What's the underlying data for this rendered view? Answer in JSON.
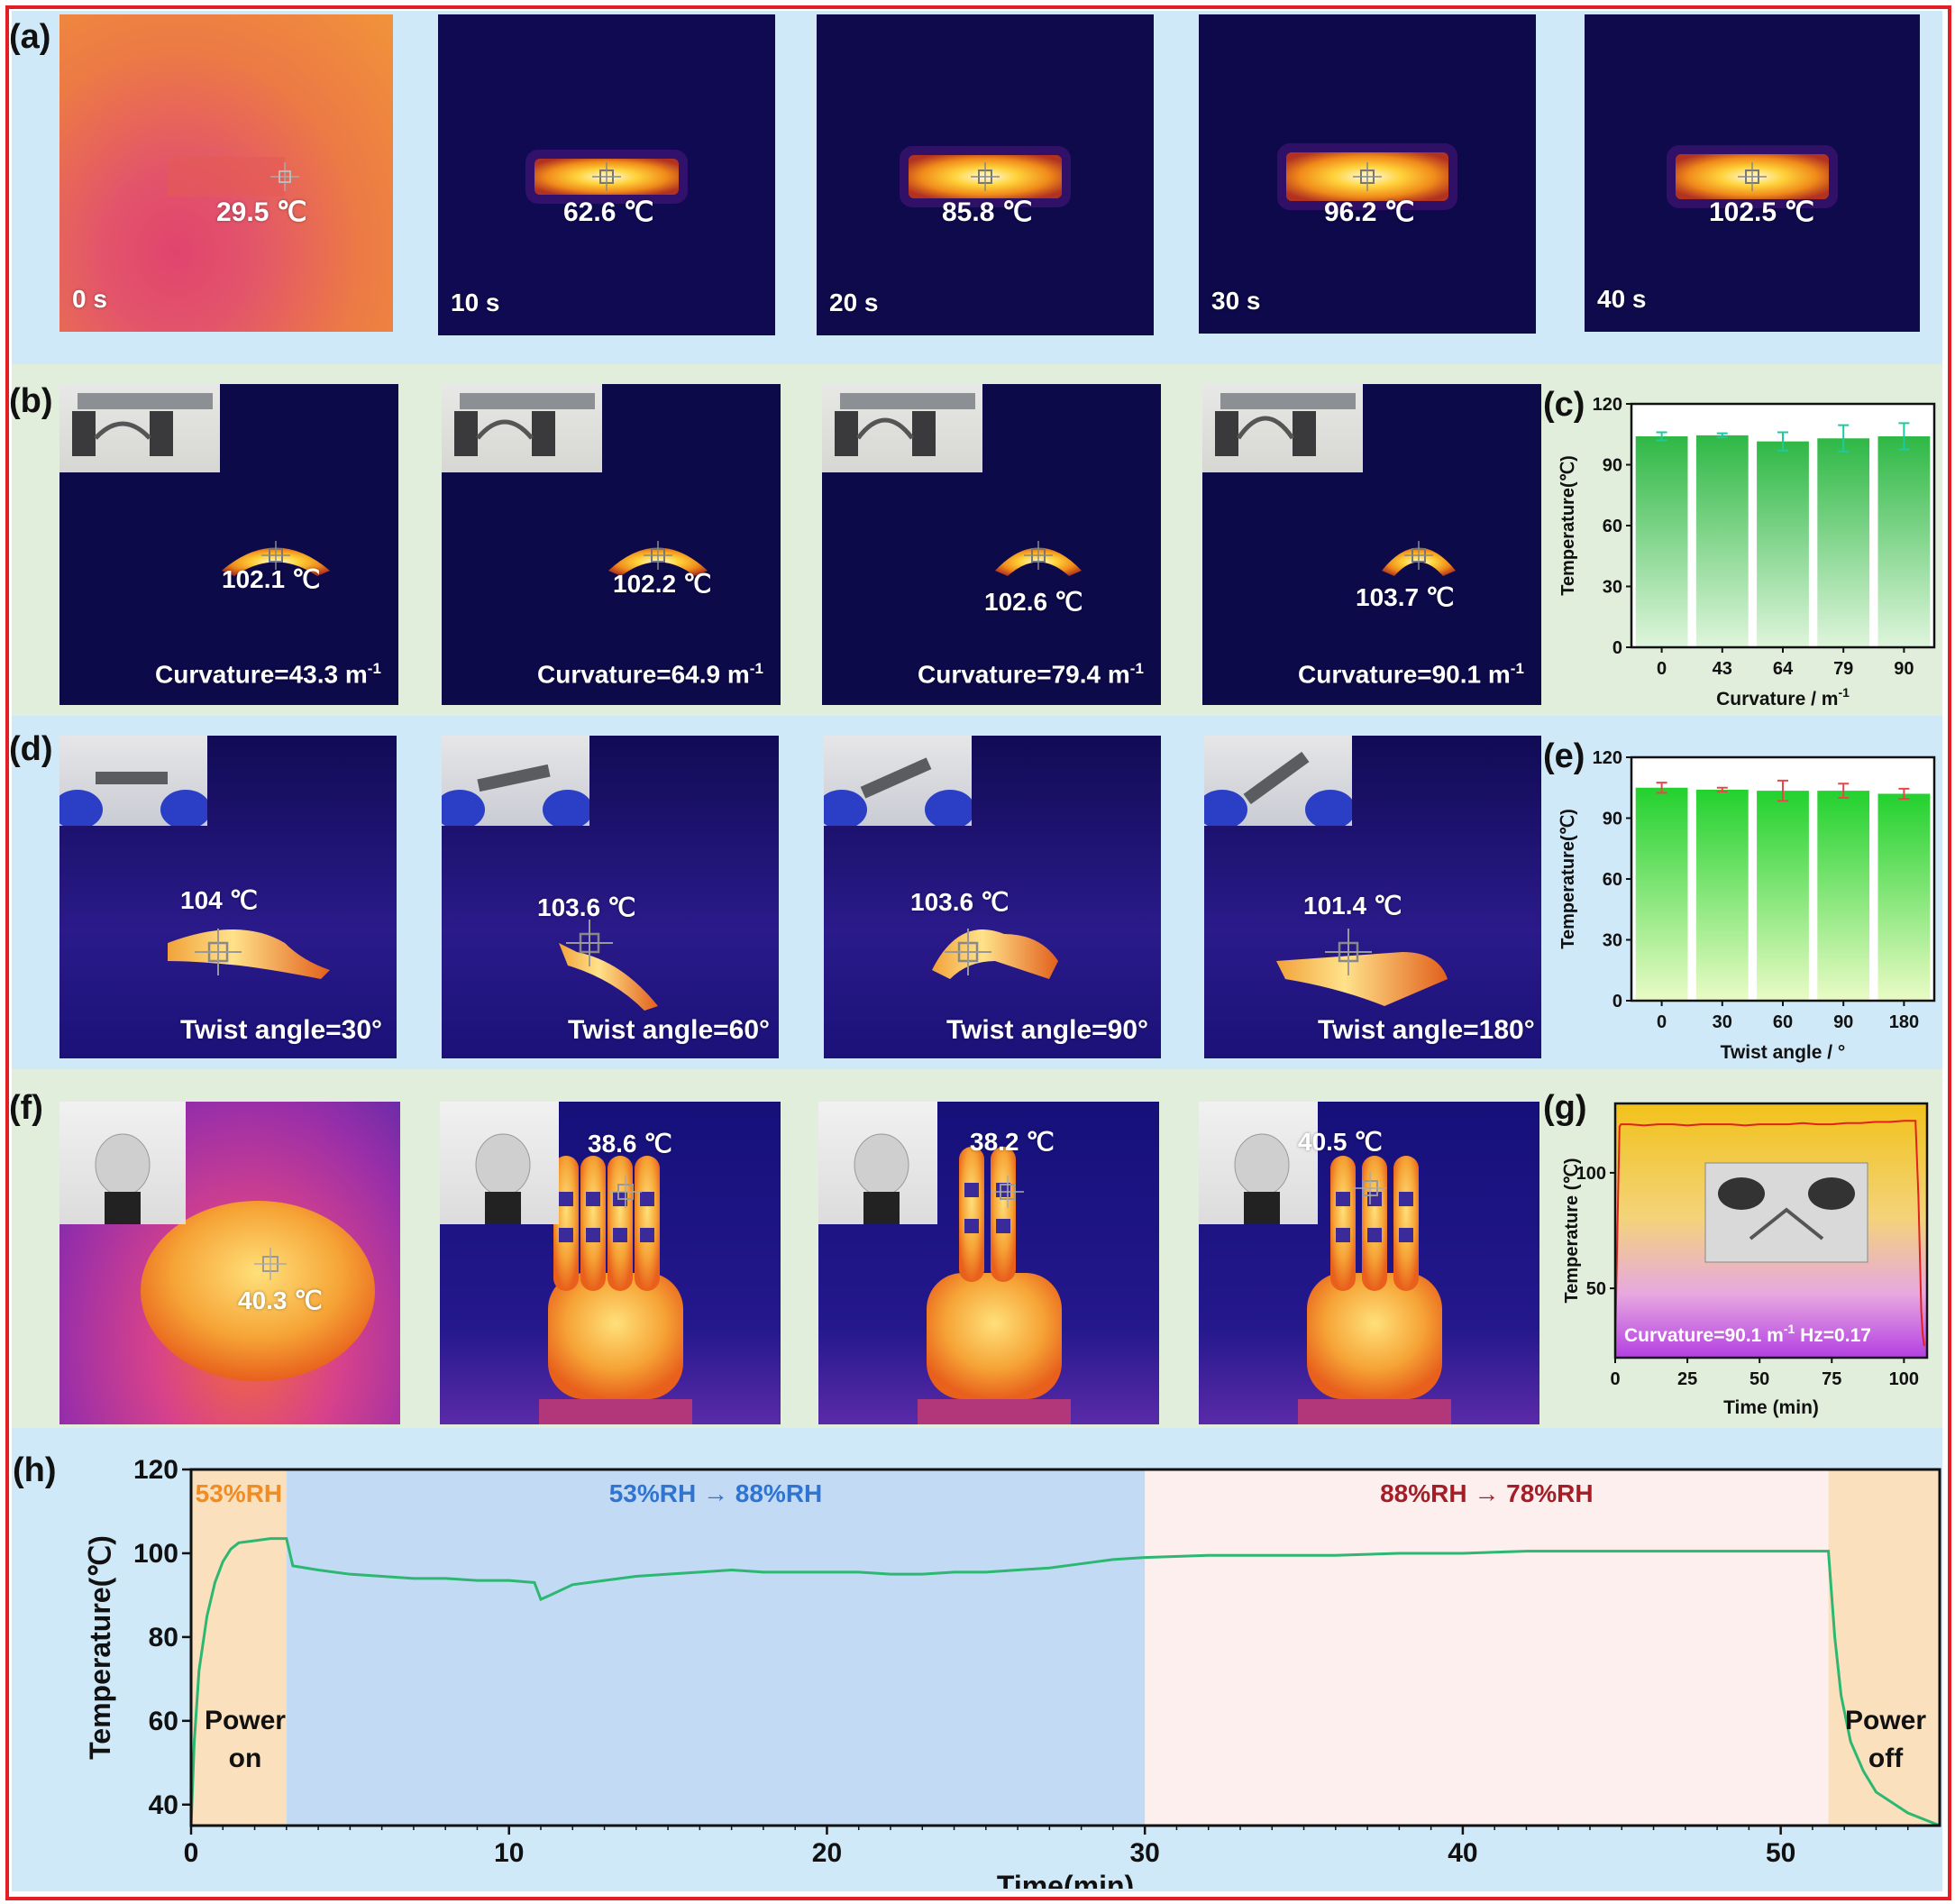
{
  "panels": {
    "a": {
      "label": "(a)",
      "frames": [
        {
          "time": "0 s",
          "temp": "29.5 ℃"
        },
        {
          "time": "10 s",
          "temp": "62.6 ℃"
        },
        {
          "time": "20 s",
          "temp": "85.8 ℃"
        },
        {
          "time": "30 s",
          "temp": "96.2 ℃"
        },
        {
          "time": "40 s",
          "temp": "102.5 ℃"
        }
      ]
    },
    "b": {
      "label": "(b)",
      "frames": [
        {
          "temp": "102.1 ℃",
          "curv_text": "Curvature=43.3 m",
          "sup": "-1"
        },
        {
          "temp": "102.2 ℃",
          "curv_text": "Curvature=64.9 m",
          "sup": "-1"
        },
        {
          "temp": "102.6 ℃",
          "curv_text": "Curvature=79.4 m",
          "sup": "-1"
        },
        {
          "temp": "103.7 ℃",
          "curv_text": "Curvature=90.1 m",
          "sup": "-1"
        }
      ]
    },
    "c": {
      "label": "(c)"
    },
    "d": {
      "label": "(d)",
      "frames": [
        {
          "temp": "104 ℃",
          "caption": "Twist angle=30°"
        },
        {
          "temp": "103.6 ℃",
          "caption": "Twist angle=60°"
        },
        {
          "temp": "103.6 ℃",
          "caption": "Twist angle=90°"
        },
        {
          "temp": "101.4 ℃",
          "caption": "Twist angle=180°"
        }
      ]
    },
    "e": {
      "label": "(e)"
    },
    "f": {
      "label": "(f)",
      "frames": [
        {
          "temp": "40.3 ℃"
        },
        {
          "temp": "38.6 ℃"
        },
        {
          "temp": "38.2 ℃"
        },
        {
          "temp": "40.5 ℃"
        }
      ]
    },
    "g": {
      "label": "(g)"
    },
    "h": {
      "label": "(h)"
    }
  },
  "chart_data": [
    {
      "id": "c",
      "type": "bar",
      "categories": [
        "0",
        "43",
        "64",
        "79",
        "90"
      ],
      "values": [
        104,
        104.5,
        101.5,
        103,
        104
      ],
      "errors": [
        2,
        1,
        4.5,
        6.5,
        6.5
      ],
      "xlabel": "Curvature / m",
      "xlabel_sup": "-1",
      "ylabel": "Temperature(℃)",
      "ylim": [
        0,
        120
      ],
      "yticks": [
        0,
        30,
        60,
        90,
        120
      ],
      "colors": {
        "bar_top": "#2eb845",
        "bar_bottom": "#dff5dc",
        "error": "#1fc9a0"
      }
    },
    {
      "id": "e",
      "type": "bar",
      "categories": [
        "0",
        "30",
        "60",
        "90",
        "180"
      ],
      "values": [
        105,
        104,
        103.5,
        103.5,
        102
      ],
      "errors": [
        2.5,
        1,
        5,
        3.5,
        2.5
      ],
      "xlabel": "Twist angle / °",
      "ylabel": "Temperature(℃)",
      "ylim": [
        0,
        120
      ],
      "yticks": [
        0,
        30,
        60,
        90,
        120
      ],
      "colors": {
        "bar_top": "#22d12e",
        "bar_bottom": "#eafbc6",
        "error": "#e8474a"
      }
    },
    {
      "id": "g",
      "type": "line",
      "x": [
        0,
        1,
        1.5,
        2,
        5,
        10,
        15,
        20,
        25,
        30,
        35,
        40,
        45,
        50,
        55,
        60,
        65,
        70,
        75,
        80,
        85,
        90,
        95,
        100,
        104,
        105,
        106,
        106.5,
        107
      ],
      "y": [
        25,
        90,
        120,
        121,
        121,
        120.5,
        121,
        121,
        120.5,
        121,
        121,
        121,
        120.5,
        121,
        121,
        121,
        121.5,
        121,
        121,
        121.5,
        121.5,
        122,
        122,
        122.5,
        122.5,
        90,
        40,
        30,
        25
      ],
      "xlabel": "Time (min)",
      "ylabel": "Temperature (℃)",
      "xlim": [
        0,
        108
      ],
      "ylim": [
        20,
        130
      ],
      "xticks": [
        0,
        25,
        50,
        75,
        100
      ],
      "yticks": [
        50,
        100
      ],
      "annotation": "Curvature=90.1 m",
      "annotation_sup": "-1",
      "annotation_tail": " Hz=0.17",
      "colors": {
        "line": "#e3201b"
      }
    },
    {
      "id": "h",
      "type": "line",
      "x": [
        0,
        0.1,
        0.25,
        0.5,
        0.75,
        1,
        1.25,
        1.5,
        2,
        2.5,
        3,
        3.2,
        4,
        5,
        6,
        7,
        8,
        9,
        10,
        10.8,
        11,
        11.3,
        12,
        13,
        14,
        15,
        16,
        17,
        18,
        19,
        20,
        21,
        22,
        23,
        24,
        25,
        26,
        27,
        28,
        29,
        30,
        32,
        34,
        36,
        38,
        40,
        42,
        44,
        46,
        48,
        50,
        51.5,
        51.7,
        51.9,
        52.2,
        52.6,
        53,
        54,
        55
      ],
      "y": [
        35,
        55,
        72,
        85,
        93,
        98,
        101,
        102.5,
        103,
        103.5,
        103.5,
        97,
        96,
        95,
        94.5,
        94,
        94,
        93.5,
        93.5,
        93,
        89,
        90,
        92.5,
        93.5,
        94.5,
        95,
        95.5,
        96,
        95.5,
        95.5,
        95.5,
        95.5,
        95,
        95,
        95.5,
        95.5,
        96,
        96.5,
        97.5,
        98.5,
        99,
        99.5,
        99.5,
        99.5,
        100,
        100,
        100.5,
        100.5,
        100.5,
        100.5,
        100.5,
        100.5,
        80,
        66,
        55,
        48,
        43,
        38,
        35
      ],
      "xlabel": "Time(min)",
      "ylabel": "Temperature(℃)",
      "xlim": [
        0,
        55
      ],
      "ylim": [
        35,
        120
      ],
      "xticks": [
        0,
        10,
        20,
        30,
        40,
        50
      ],
      "yticks": [
        40,
        60,
        80,
        100,
        120
      ],
      "regions": [
        {
          "from": 0,
          "to": 3,
          "label": "53%RH",
          "fill": "#fbe0bd",
          "text_color": "#f08c22"
        },
        {
          "from": 3,
          "to": 30,
          "label": "53%RH → 88%RH",
          "fill": "#c3daf4",
          "text_color": "#2f74d0"
        },
        {
          "from": 30,
          "to": 51.5,
          "label": "88%RH → 78%RH",
          "fill": "#fcefed",
          "text_color": "#a51e27"
        },
        {
          "from": 51.5,
          "to": 55,
          "label": "",
          "fill": "#fbe0bd",
          "text_color": "#f08c22"
        }
      ],
      "notes": [
        {
          "lines": [
            "Power",
            "on"
          ],
          "x": 1.7,
          "y": 58
        },
        {
          "lines": [
            "Power",
            "off"
          ],
          "x": 53.3,
          "y": 58
        }
      ],
      "colors": {
        "line": "#2cb872"
      }
    }
  ]
}
